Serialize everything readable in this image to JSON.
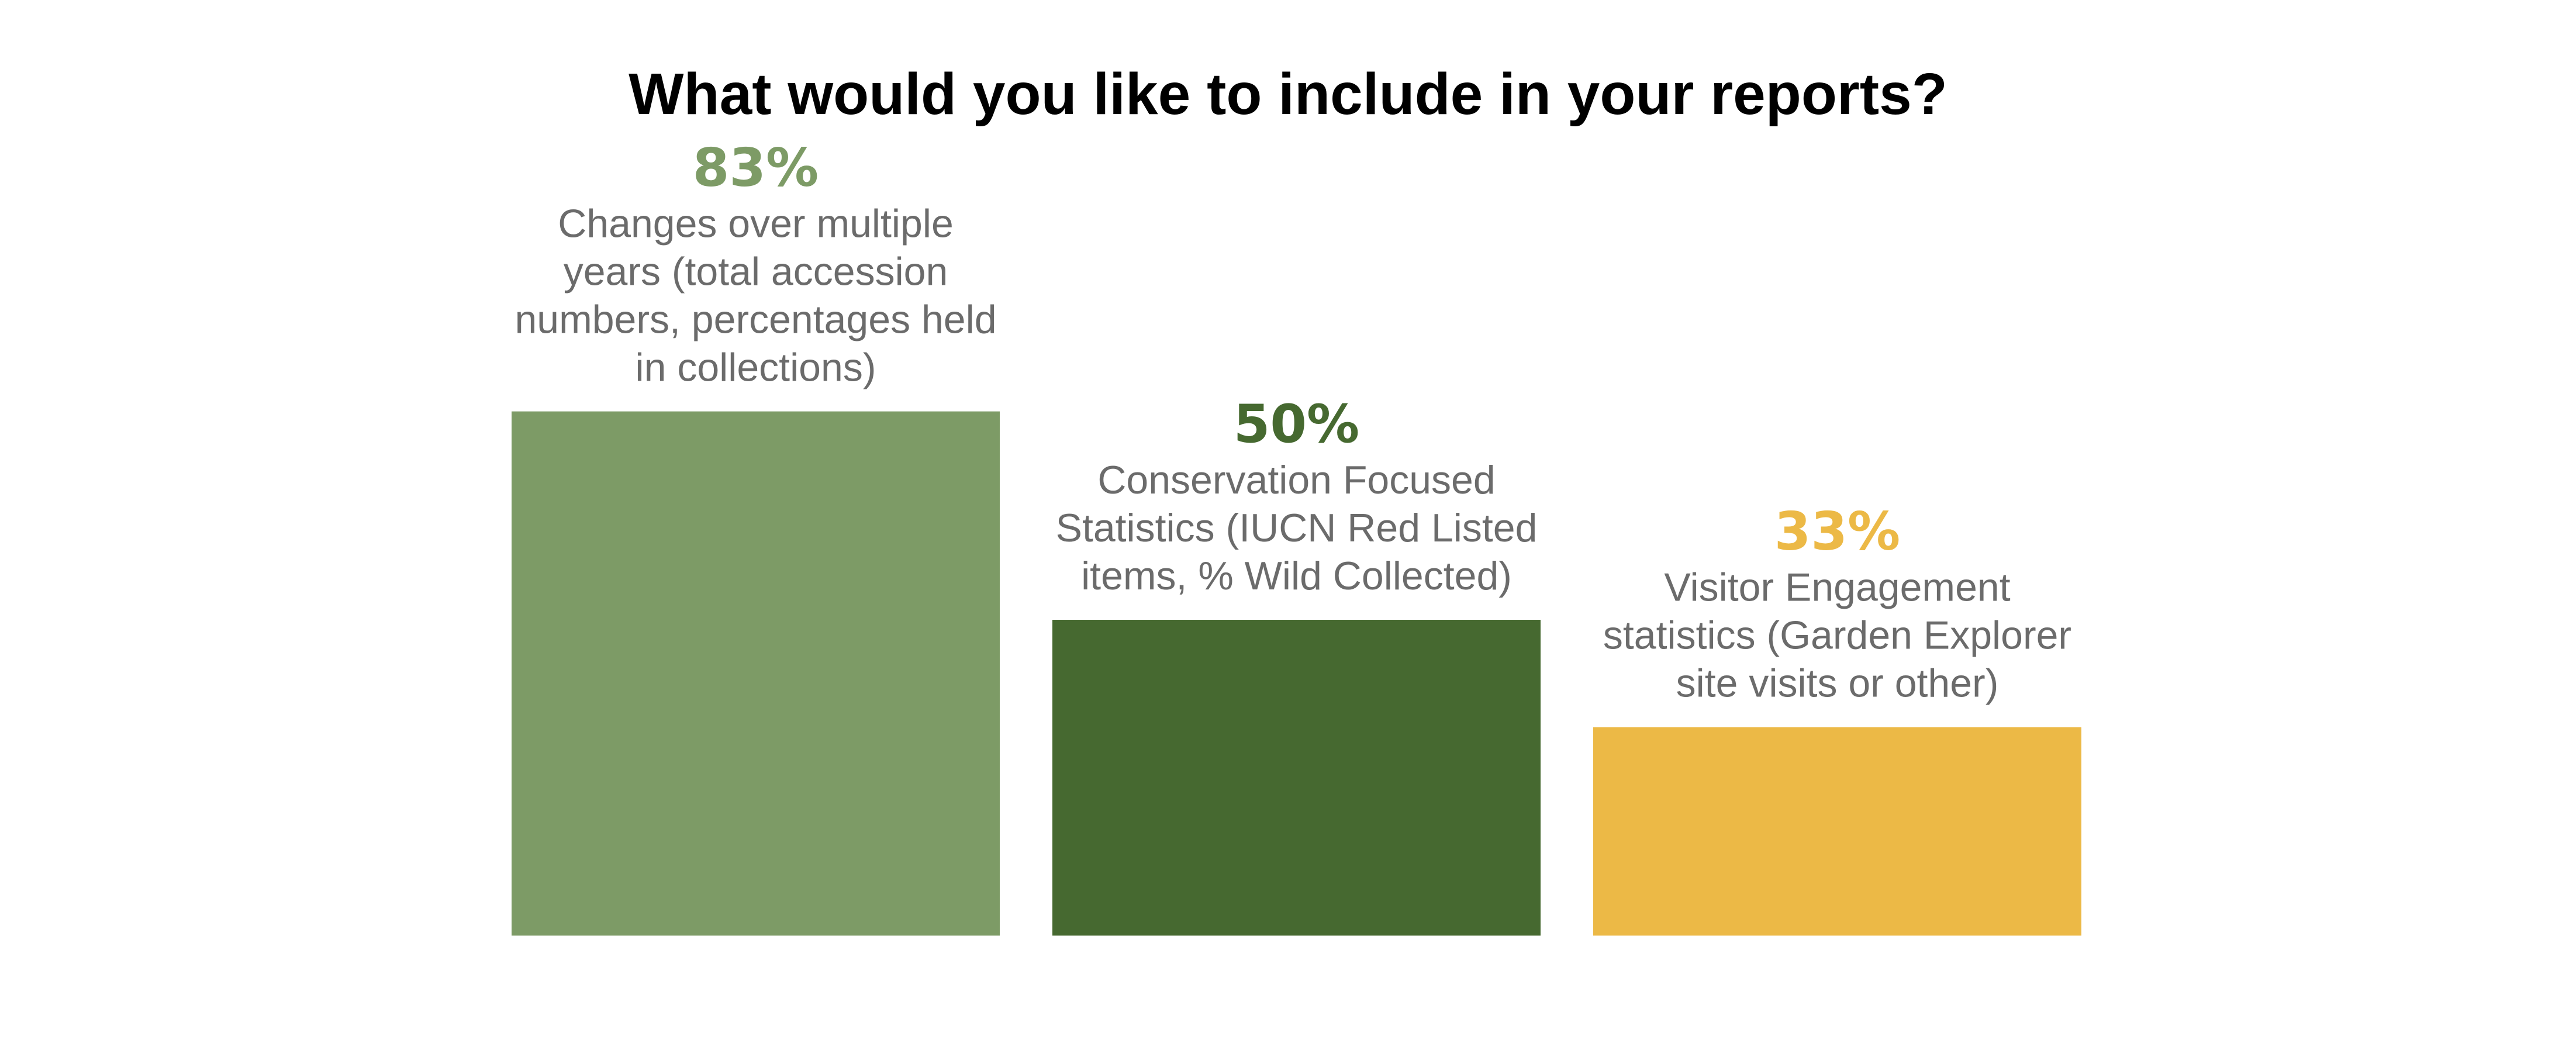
{
  "chart_data": {
    "type": "bar",
    "title": "What would you like to include in your reports?",
    "xlabel": "",
    "ylabel": "",
    "ylim": [
      0,
      100
    ],
    "grid": false,
    "categories": [
      "Changes over multiple years (total accession numbers, percentages held in collections)",
      "Conservation Focused Statistics (IUCN Red Listed items, % Wild Collected)",
      "Visitor Engagement statistics (Garden Explorer site visits or other)"
    ],
    "category_lines": [
      [
        "Changes over multiple",
        "years (total accession",
        "numbers, percentages held",
        "in collections)"
      ],
      [
        "Conservation Focused",
        "Statistics (IUCN Red Listed",
        "items, % Wild Collected)"
      ],
      [
        "Visitor Engagement",
        "statistics (Garden Explorer",
        "site visits or other)"
      ]
    ],
    "values": [
      83,
      50,
      33
    ],
    "value_labels": [
      "83%",
      "50%",
      "33%"
    ],
    "colors": [
      "#7d9b66",
      "#466930",
      "#ecb946"
    ]
  }
}
